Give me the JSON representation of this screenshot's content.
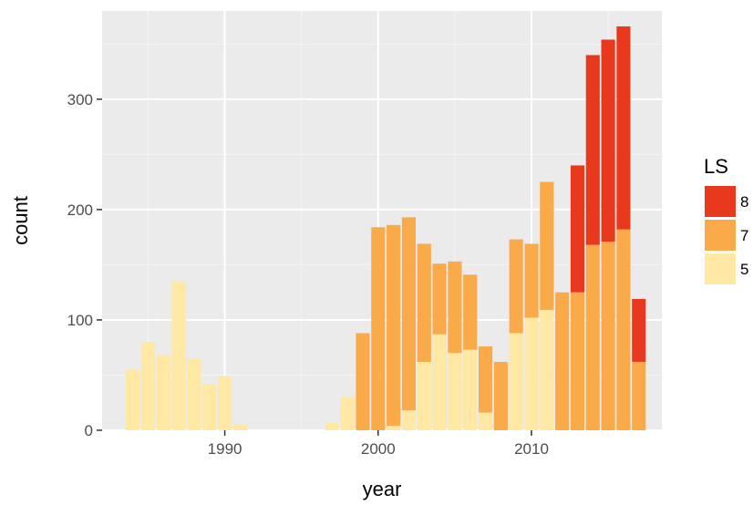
{
  "chart_data": {
    "type": "bar",
    "stacked": true,
    "xlabel": "year",
    "ylabel": "count",
    "xlim": [
      1982,
      2018.5
    ],
    "ylim": [
      0,
      380
    ],
    "x_ticks": [
      1990,
      2000,
      2010
    ],
    "y_ticks": [
      0,
      100,
      200,
      300
    ],
    "grid": true,
    "legend": {
      "title": "LS",
      "position": "right",
      "entries": [
        {
          "label": "8",
          "color": "#E8391E"
        },
        {
          "label": "7",
          "color": "#FBAA4A"
        },
        {
          "label": "5",
          "color": "#FEE8A3"
        }
      ]
    },
    "x": [
      1984,
      1985,
      1986,
      1987,
      1988,
      1989,
      1990,
      1991,
      1997,
      1998,
      1999,
      2000,
      2001,
      2002,
      2003,
      2004,
      2005,
      2006,
      2007,
      2008,
      2009,
      2010,
      2011,
      2012,
      2013,
      2014,
      2015,
      2016,
      2017
    ],
    "series": [
      {
        "name": "5",
        "color": "#FEE8A3",
        "values": [
          55,
          80,
          68,
          135,
          65,
          42,
          49,
          5,
          7,
          30,
          0,
          0,
          4,
          18,
          62,
          87,
          70,
          73,
          16,
          0,
          88,
          102,
          109,
          0,
          0,
          0,
          0,
          0,
          0
        ]
      },
      {
        "name": "7",
        "color": "#FBAA4A",
        "values": [
          0,
          0,
          0,
          0,
          0,
          0,
          0,
          0,
          0,
          0,
          88,
          184,
          182,
          175,
          107,
          64,
          83,
          68,
          60,
          62,
          85,
          67,
          116,
          125,
          125,
          168,
          171,
          182,
          62
        ]
      },
      {
        "name": "8",
        "color": "#E8391E",
        "values": [
          0,
          0,
          0,
          0,
          0,
          0,
          0,
          0,
          0,
          0,
          0,
          0,
          0,
          0,
          0,
          0,
          0,
          0,
          0,
          0,
          0,
          0,
          0,
          0,
          115,
          172,
          183,
          184,
          57
        ]
      }
    ]
  }
}
